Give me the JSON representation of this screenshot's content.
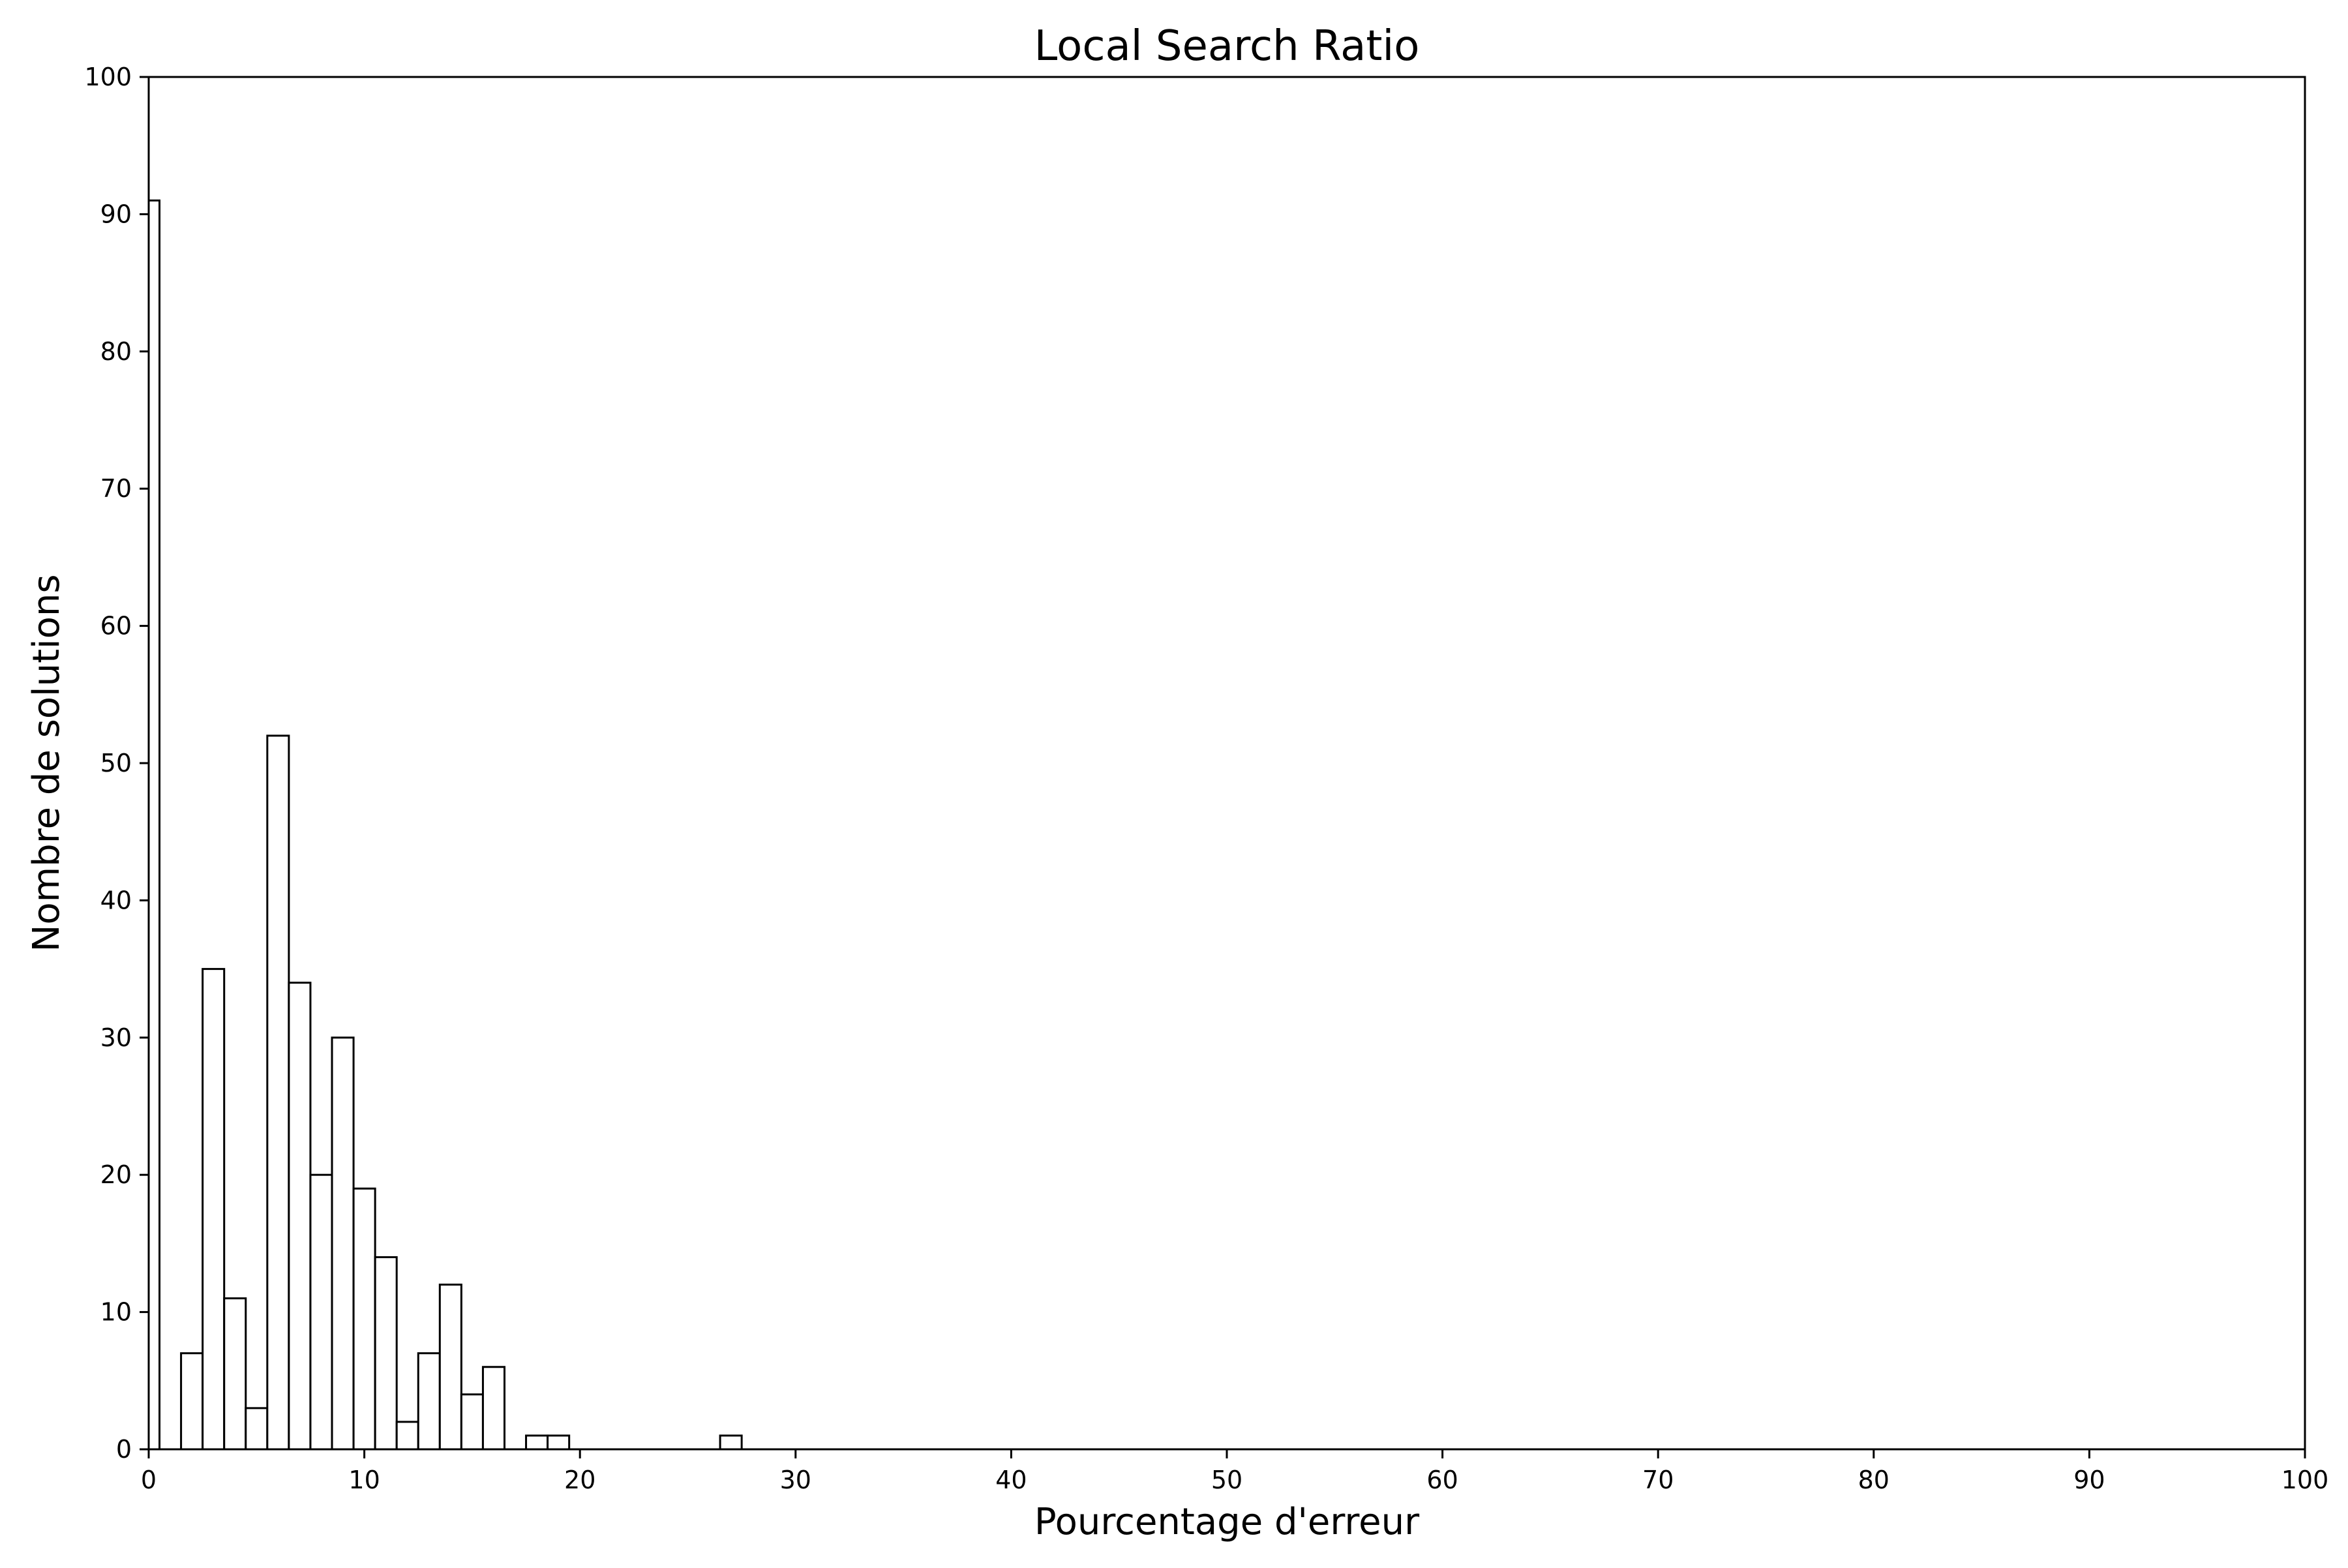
{
  "chart_data": {
    "type": "bar",
    "title": "Local Search Ratio",
    "xlabel": "Pourcentage d'erreur",
    "ylabel": "Nombre de solutions",
    "xlim": [
      0,
      100
    ],
    "ylim": [
      0,
      100
    ],
    "xticks": [
      0,
      10,
      20,
      30,
      40,
      50,
      60,
      70,
      80,
      90,
      100
    ],
    "yticks": [
      0,
      10,
      20,
      30,
      40,
      50,
      60,
      70,
      80,
      90,
      100
    ],
    "grid": false,
    "legend": false,
    "bar_style": {
      "fill": "#ffffff",
      "stroke": "#000000"
    },
    "bins": [
      {
        "x0": 0.0,
        "x1": 0.5,
        "value": 91
      },
      {
        "x0": 1.5,
        "x1": 2.5,
        "value": 7
      },
      {
        "x0": 2.5,
        "x1": 3.5,
        "value": 35
      },
      {
        "x0": 3.5,
        "x1": 4.5,
        "value": 11
      },
      {
        "x0": 4.5,
        "x1": 5.5,
        "value": 3
      },
      {
        "x0": 5.5,
        "x1": 6.5,
        "value": 52
      },
      {
        "x0": 6.5,
        "x1": 7.5,
        "value": 34
      },
      {
        "x0": 7.5,
        "x1": 8.5,
        "value": 20
      },
      {
        "x0": 8.5,
        "x1": 9.5,
        "value": 30
      },
      {
        "x0": 9.5,
        "x1": 10.5,
        "value": 19
      },
      {
        "x0": 10.5,
        "x1": 11.5,
        "value": 14
      },
      {
        "x0": 11.5,
        "x1": 12.5,
        "value": 2
      },
      {
        "x0": 12.5,
        "x1": 13.5,
        "value": 7
      },
      {
        "x0": 13.5,
        "x1": 14.5,
        "value": 12
      },
      {
        "x0": 14.5,
        "x1": 15.5,
        "value": 4
      },
      {
        "x0": 15.5,
        "x1": 16.5,
        "value": 6
      },
      {
        "x0": 17.5,
        "x1": 18.5,
        "value": 1
      },
      {
        "x0": 18.5,
        "x1": 19.5,
        "value": 1
      },
      {
        "x0": 26.5,
        "x1": 27.5,
        "value": 1
      }
    ]
  }
}
